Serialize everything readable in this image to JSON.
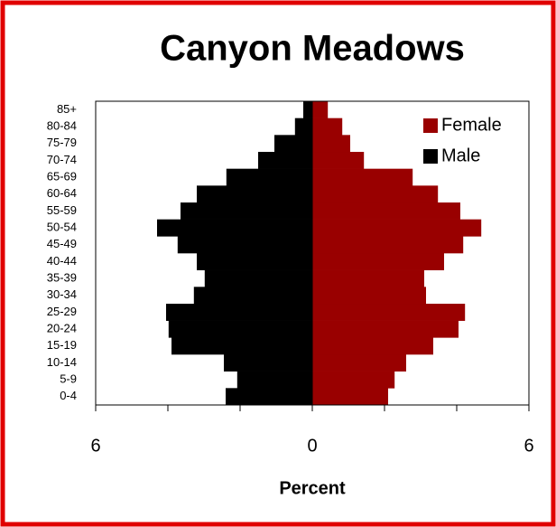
{
  "chart_data": {
    "type": "pyramid",
    "title": "Canyon Meadows",
    "categories": [
      "0-4",
      "5-9",
      "10-14",
      "15-19",
      "20-24",
      "25-29",
      "30-34",
      "35-39",
      "40-44",
      "45-49",
      "50-54",
      "55-59",
      "60-64",
      "65-69",
      "70-74",
      "75-79",
      "80-84",
      "85+"
    ],
    "series": [
      {
        "name": "Female",
        "color": "#990000",
        "side": "right",
        "values": [
          2.1,
          2.28,
          2.6,
          3.35,
          4.05,
          4.23,
          3.15,
          3.1,
          3.65,
          4.18,
          4.68,
          4.1,
          3.48,
          2.78,
          1.43,
          1.05,
          0.83,
          0.43
        ]
      },
      {
        "name": "Male",
        "color": "#000000",
        "side": "left",
        "values": [
          2.4,
          2.08,
          2.45,
          3.9,
          3.98,
          4.05,
          3.28,
          2.98,
          3.2,
          3.73,
          4.3,
          3.65,
          3.2,
          2.38,
          1.5,
          1.05,
          0.48,
          0.25
        ]
      }
    ],
    "xlim": [
      -6,
      6
    ],
    "xticks": [
      {
        "value": -6,
        "label": "6"
      },
      0,
      6
    ],
    "minor_xticks": [
      -4,
      -2,
      2,
      4
    ],
    "xlabel": "Percent",
    "legend": "top-right"
  }
}
